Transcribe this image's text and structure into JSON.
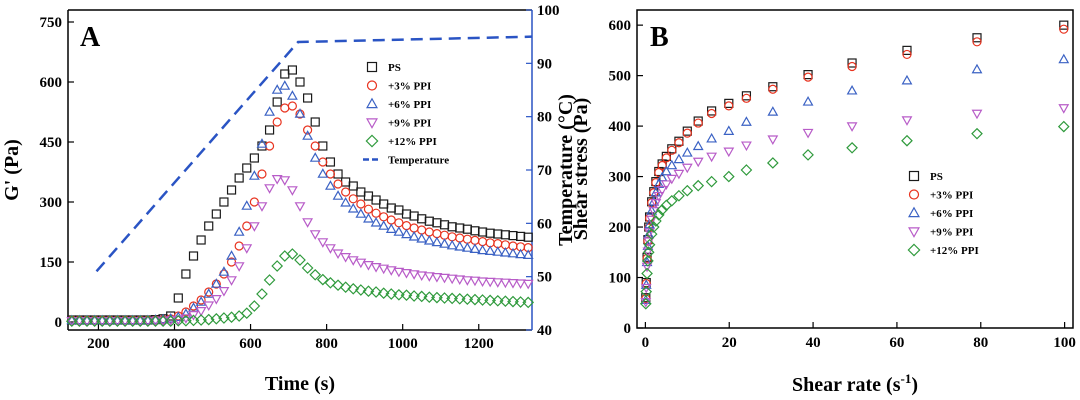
{
  "colors": {
    "ps": "#1a1a1a",
    "ppi3": "#e8321e",
    "ppi6": "#3b62c4",
    "ppi9": "#b85cc8",
    "ppi12": "#2f9a3c",
    "temperature": "#2a54c4",
    "right_axis": "#2a54c4"
  },
  "chart_data": [
    {
      "panel": "A",
      "type": "scatter",
      "xlabel": "Time (s)",
      "ylabel": "G' (Pa)",
      "y2label": "Temperature (°C)",
      "xlim": [
        120,
        1340
      ],
      "ylim": [
        -20,
        780
      ],
      "y2lim": [
        40,
        100
      ],
      "xticks": [
        200,
        400,
        600,
        800,
        1000,
        1200
      ],
      "yticks": [
        0,
        150,
        300,
        450,
        600,
        750
      ],
      "y2ticks": [
        40,
        50,
        60,
        70,
        80,
        90,
        100
      ],
      "legend_position": "top-right",
      "series": [
        {
          "name": "PS",
          "marker": "square",
          "color": "#1a1a1a",
          "x": [
            130,
            150,
            170,
            190,
            210,
            230,
            250,
            270,
            290,
            310,
            330,
            350,
            370,
            390,
            410,
            430,
            450,
            470,
            490,
            510,
            530,
            550,
            570,
            590,
            610,
            630,
            650,
            670,
            690,
            710,
            730,
            750,
            770,
            790,
            810,
            830,
            850,
            870,
            890,
            910,
            930,
            950,
            970,
            990,
            1010,
            1030,
            1050,
            1070,
            1090,
            1110,
            1130,
            1150,
            1170,
            1190,
            1210,
            1230,
            1250,
            1270,
            1290,
            1310,
            1330
          ],
          "y": [
            5,
            5,
            5,
            5,
            5,
            5,
            5,
            5,
            5,
            5,
            5,
            6,
            8,
            15,
            60,
            120,
            165,
            205,
            240,
            270,
            300,
            330,
            360,
            385,
            410,
            440,
            480,
            550,
            620,
            630,
            600,
            560,
            500,
            440,
            400,
            370,
            350,
            340,
            325,
            315,
            305,
            295,
            285,
            280,
            270,
            265,
            258,
            252,
            248,
            243,
            238,
            235,
            232,
            228,
            225,
            222,
            220,
            218,
            216,
            214,
            212
          ]
        },
        {
          "name": "+3% PPI",
          "marker": "circle",
          "color": "#e8321e",
          "x": [
            130,
            150,
            170,
            190,
            210,
            230,
            250,
            270,
            290,
            310,
            330,
            350,
            370,
            390,
            410,
            430,
            450,
            470,
            490,
            510,
            530,
            550,
            570,
            590,
            610,
            630,
            650,
            670,
            690,
            710,
            730,
            750,
            770,
            790,
            810,
            830,
            850,
            870,
            890,
            910,
            930,
            950,
            970,
            990,
            1010,
            1030,
            1050,
            1070,
            1090,
            1110,
            1130,
            1150,
            1170,
            1190,
            1210,
            1230,
            1250,
            1270,
            1290,
            1310,
            1330
          ],
          "y": [
            4,
            4,
            4,
            4,
            4,
            4,
            4,
            4,
            4,
            4,
            4,
            5,
            6,
            8,
            15,
            25,
            40,
            55,
            75,
            95,
            120,
            150,
            190,
            240,
            300,
            370,
            440,
            500,
            535,
            540,
            520,
            480,
            440,
            400,
            370,
            345,
            325,
            308,
            295,
            282,
            272,
            263,
            255,
            248,
            241,
            235,
            230,
            225,
            221,
            217,
            213,
            210,
            207,
            204,
            201,
            198,
            196,
            193,
            190,
            188,
            186
          ]
        },
        {
          "name": "+6% PPI",
          "marker": "triangle-up",
          "color": "#3b62c4",
          "x": [
            130,
            150,
            170,
            190,
            210,
            230,
            250,
            270,
            290,
            310,
            330,
            350,
            370,
            390,
            410,
            430,
            450,
            470,
            490,
            510,
            530,
            550,
            570,
            590,
            610,
            630,
            650,
            670,
            690,
            710,
            730,
            750,
            770,
            790,
            810,
            830,
            850,
            870,
            890,
            910,
            930,
            950,
            970,
            990,
            1010,
            1030,
            1050,
            1070,
            1090,
            1110,
            1130,
            1150,
            1170,
            1190,
            1210,
            1230,
            1250,
            1270,
            1290,
            1310,
            1330
          ],
          "y": [
            4,
            4,
            4,
            4,
            4,
            4,
            4,
            4,
            4,
            4,
            4,
            5,
            6,
            8,
            12,
            20,
            35,
            50,
            70,
            95,
            125,
            165,
            225,
            290,
            365,
            445,
            525,
            580,
            590,
            565,
            520,
            465,
            410,
            370,
            340,
            315,
            298,
            283,
            270,
            258,
            248,
            240,
            232,
            225,
            219,
            213,
            208,
            203,
            199,
            195,
            191,
            188,
            185,
            182,
            179,
            177,
            175,
            173,
            171,
            169,
            167
          ]
        },
        {
          "name": "+9% PPI",
          "marker": "triangle-down",
          "color": "#b85cc8",
          "x": [
            130,
            150,
            170,
            190,
            210,
            230,
            250,
            270,
            290,
            310,
            330,
            350,
            370,
            390,
            410,
            430,
            450,
            470,
            490,
            510,
            530,
            550,
            570,
            590,
            610,
            630,
            650,
            670,
            690,
            710,
            730,
            750,
            770,
            790,
            810,
            830,
            850,
            870,
            890,
            910,
            930,
            950,
            970,
            990,
            1010,
            1030,
            1050,
            1070,
            1090,
            1110,
            1130,
            1150,
            1170,
            1190,
            1210,
            1230,
            1250,
            1270,
            1290,
            1310,
            1330
          ],
          "y": [
            3,
            3,
            3,
            3,
            3,
            3,
            3,
            3,
            3,
            3,
            3,
            4,
            4,
            5,
            6,
            10,
            18,
            28,
            42,
            58,
            78,
            105,
            140,
            185,
            240,
            290,
            335,
            358,
            355,
            330,
            290,
            250,
            220,
            200,
            185,
            172,
            163,
            155,
            149,
            143,
            138,
            134,
            130,
            126,
            123,
            120,
            117,
            115,
            113,
            111,
            109,
            107,
            105,
            104,
            102,
            101,
            100,
            99,
            98,
            97,
            96
          ]
        },
        {
          "name": "+12% PPI",
          "marker": "diamond",
          "color": "#2f9a3c",
          "x": [
            130,
            150,
            170,
            190,
            210,
            230,
            250,
            270,
            290,
            310,
            330,
            350,
            370,
            390,
            410,
            430,
            450,
            470,
            490,
            510,
            530,
            550,
            570,
            590,
            610,
            630,
            650,
            670,
            690,
            710,
            730,
            750,
            770,
            790,
            810,
            830,
            850,
            870,
            890,
            910,
            930,
            950,
            970,
            990,
            1010,
            1030,
            1050,
            1070,
            1090,
            1110,
            1130,
            1150,
            1170,
            1190,
            1210,
            1230,
            1250,
            1270,
            1290,
            1310,
            1330
          ],
          "y": [
            2,
            2,
            2,
            2,
            2,
            2,
            2,
            2,
            2,
            2,
            2,
            2,
            2,
            2,
            3,
            3,
            4,
            5,
            6,
            8,
            10,
            12,
            15,
            22,
            40,
            70,
            105,
            140,
            165,
            170,
            155,
            135,
            118,
            106,
            98,
            92,
            87,
            83,
            80,
            77,
            75,
            72,
            70,
            68,
            67,
            65,
            64,
            62,
            61,
            60,
            59,
            58,
            57,
            56,
            55,
            54,
            53,
            52,
            51,
            50,
            49
          ]
        }
      ],
      "temperature": {
        "name": "Temperature",
        "style": "dashed",
        "color": "#2a54c4",
        "x": [
          195,
          725,
          1340
        ],
        "y": [
          51,
          94,
          95
        ]
      }
    },
    {
      "panel": "B",
      "type": "scatter",
      "xlabel": "Shear rate (s",
      "xlabel_superscript": "-1",
      "xlabel_suffix": ")",
      "ylabel": "Shear stress (Pa)",
      "xlim": [
        -2,
        102
      ],
      "ylim": [
        0,
        630
      ],
      "xticks": [
        0,
        20,
        40,
        60,
        80,
        100
      ],
      "yticks": [
        0,
        100,
        200,
        300,
        400,
        500,
        600
      ],
      "legend_position": "center-right",
      "x": [
        0.1,
        0.2,
        0.4,
        0.6,
        0.8,
        1.0,
        1.5,
        2.0,
        2.5,
        3.2,
        4.0,
        5.0,
        6.3,
        8.0,
        10,
        12.6,
        15.8,
        19.9,
        24.1,
        30.4,
        38.8,
        49.3,
        62.4,
        79.1,
        99.8
      ],
      "series": [
        {
          "name": "PS",
          "marker": "square",
          "color": "#1a1a1a",
          "y": [
            60,
            90,
            140,
            175,
            200,
            220,
            250,
            270,
            290,
            310,
            325,
            340,
            355,
            370,
            390,
            410,
            430,
            445,
            460,
            478,
            502,
            525,
            550,
            575,
            600
          ]
        },
        {
          "name": "+3% PPI",
          "marker": "circle",
          "color": "#e8321e",
          "y": [
            58,
            88,
            138,
            172,
            198,
            218,
            248,
            268,
            288,
            308,
            322,
            337,
            352,
            367,
            386,
            406,
            425,
            440,
            455,
            473,
            497,
            518,
            542,
            567,
            592
          ]
        },
        {
          "name": "+6% PPI",
          "marker": "triangle-up",
          "color": "#3b62c4",
          "y": [
            55,
            85,
            130,
            162,
            185,
            205,
            232,
            250,
            268,
            285,
            298,
            310,
            322,
            334,
            347,
            360,
            375,
            390,
            408,
            428,
            448,
            470,
            490,
            512,
            532
          ]
        },
        {
          "name": "+9% PPI",
          "marker": "triangle-down",
          "color": "#b85cc8",
          "y": [
            52,
            80,
            122,
            152,
            172,
            190,
            215,
            232,
            248,
            262,
            274,
            285,
            296,
            306,
            318,
            330,
            340,
            350,
            362,
            374,
            387,
            400,
            412,
            425,
            436
          ]
        },
        {
          "name": "+12% PPI",
          "marker": "diamond",
          "color": "#2f9a3c",
          "y": [
            48,
            72,
            108,
            133,
            150,
            165,
            186,
            200,
            212,
            224,
            234,
            243,
            252,
            262,
            272,
            282,
            290,
            300,
            313,
            327,
            343,
            357,
            371,
            385,
            399
          ]
        }
      ]
    }
  ]
}
